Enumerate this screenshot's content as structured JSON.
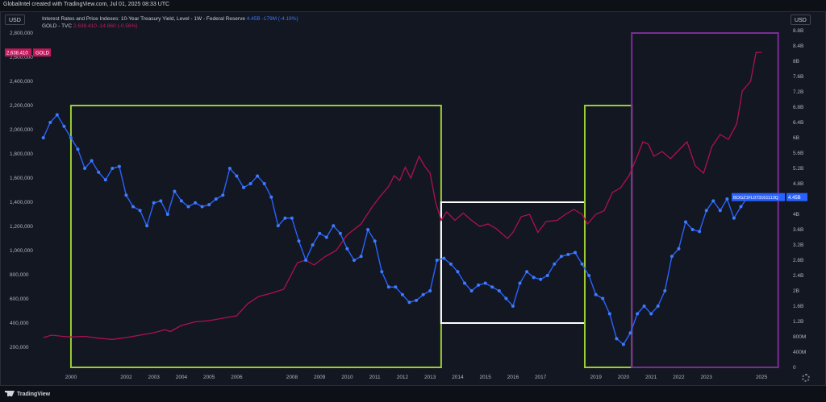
{
  "header": {
    "text": "GlobalIntel created with TradingView.com, Jul 01, 2025 08:33 UTC"
  },
  "units": {
    "left": "USD",
    "right": "USD"
  },
  "legend": {
    "rates_name": "Interest Rates and Price Indexes: 10-Year Treasury Yield, Level - 1W - Federal Reserve",
    "rates_value": "4.45B",
    "rates_change": "-179M (-4.19%)",
    "gold_name": "GOLD - TVC",
    "gold_value": "2,638.410",
    "gold_change": "-14.860 (-0.56%)"
  },
  "price_tags": {
    "gold": "2,638.410",
    "gold_symbol": "GOLD",
    "rates": "BOGZ1FL073161113Q",
    "rates_value": "4.45B"
  },
  "footer": {
    "brand": "TradingView"
  },
  "colors": {
    "background": "#131722",
    "rates_line": "#2962ff",
    "gold_line": "#b0104f",
    "green_box": "#9acd32",
    "white_box": "#ffffff",
    "purple_box": "#7b2d96"
  },
  "chart_data": {
    "type": "line",
    "x_tick_labels": [
      "2000",
      "2002",
      "2003",
      "2004",
      "2005",
      "2006",
      "2008",
      "2009",
      "2010",
      "2011",
      "2012",
      "2013",
      "2014",
      "2015",
      "2016",
      "2017",
      "2019",
      "2020",
      "2021",
      "2022",
      "2023",
      "2025"
    ],
    "left_axis": {
      "ticks": [
        "200,000",
        "400,000",
        "600,000",
        "800,000",
        "1,000,000",
        "1,200,000",
        "1,400,000",
        "1,600,000",
        "1,800,000",
        "2,000,000",
        "2,200,000",
        "2,400,000",
        "2,600,000",
        "2,800,000"
      ],
      "range": [
        0,
        2800000
      ]
    },
    "right_axis": {
      "ticks": [
        "0",
        "400M",
        "800M",
        "1.2B",
        "1.6B",
        "2B",
        "2.4B",
        "2.8B",
        "3.2B",
        "3.6B",
        "4B",
        "4.4B",
        "4.8B",
        "5.2B",
        "5.6B",
        "6B",
        "6.4B",
        "6.8B",
        "7.2B",
        "7.6B",
        "8B",
        "8.4B",
        "8.8B"
      ],
      "range": [
        0,
        8.8
      ]
    },
    "series": [
      {
        "name": "GOLD - TVC",
        "axis": "left",
        "points": [
          [
            1999.0,
            280000
          ],
          [
            1999.3,
            300000
          ],
          [
            1999.7,
            290000
          ],
          [
            2000.0,
            285000
          ],
          [
            2000.5,
            290000
          ],
          [
            2001.0,
            275000
          ],
          [
            2001.5,
            265000
          ],
          [
            2002.0,
            280000
          ],
          [
            2002.5,
            300000
          ],
          [
            2003.0,
            320000
          ],
          [
            2003.4,
            345000
          ],
          [
            2003.6,
            330000
          ],
          [
            2004.0,
            380000
          ],
          [
            2004.5,
            410000
          ],
          [
            2005.0,
            420000
          ],
          [
            2005.5,
            440000
          ],
          [
            2006.0,
            460000
          ],
          [
            2006.4,
            560000
          ],
          [
            2006.8,
            620000
          ],
          [
            2007.3,
            650000
          ],
          [
            2007.7,
            680000
          ],
          [
            2008.2,
            900000
          ],
          [
            2008.5,
            920000
          ],
          [
            2008.8,
            880000
          ],
          [
            2009.2,
            950000
          ],
          [
            2009.6,
            1000000
          ],
          [
            2010.0,
            1130000
          ],
          [
            2010.5,
            1220000
          ],
          [
            2010.9,
            1360000
          ],
          [
            2011.2,
            1450000
          ],
          [
            2011.5,
            1530000
          ],
          [
            2011.7,
            1620000
          ],
          [
            2011.9,
            1580000
          ],
          [
            2012.1,
            1690000
          ],
          [
            2012.3,
            1600000
          ],
          [
            2012.6,
            1780000
          ],
          [
            2012.8,
            1700000
          ],
          [
            2013.0,
            1640000
          ],
          [
            2013.2,
            1400000
          ],
          [
            2013.4,
            1250000
          ],
          [
            2013.6,
            1320000
          ],
          [
            2013.9,
            1250000
          ],
          [
            2014.2,
            1310000
          ],
          [
            2014.5,
            1250000
          ],
          [
            2014.8,
            1200000
          ],
          [
            2015.1,
            1220000
          ],
          [
            2015.4,
            1180000
          ],
          [
            2015.8,
            1100000
          ],
          [
            2016.0,
            1150000
          ],
          [
            2016.3,
            1280000
          ],
          [
            2016.6,
            1300000
          ],
          [
            2016.9,
            1150000
          ],
          [
            2017.2,
            1240000
          ],
          [
            2017.6,
            1250000
          ],
          [
            2017.9,
            1300000
          ],
          [
            2018.2,
            1340000
          ],
          [
            2018.5,
            1300000
          ],
          [
            2018.7,
            1220000
          ],
          [
            2019.0,
            1300000
          ],
          [
            2019.3,
            1330000
          ],
          [
            2019.6,
            1480000
          ],
          [
            2019.9,
            1520000
          ],
          [
            2020.2,
            1620000
          ],
          [
            2020.5,
            1780000
          ],
          [
            2020.7,
            1900000
          ],
          [
            2020.9,
            1880000
          ],
          [
            2021.1,
            1780000
          ],
          [
            2021.4,
            1820000
          ],
          [
            2021.7,
            1760000
          ],
          [
            2022.0,
            1830000
          ],
          [
            2022.3,
            1900000
          ],
          [
            2022.6,
            1700000
          ],
          [
            2022.9,
            1640000
          ],
          [
            2023.2,
            1860000
          ],
          [
            2023.5,
            1960000
          ],
          [
            2023.8,
            1920000
          ],
          [
            2024.1,
            2050000
          ],
          [
            2024.3,
            2320000
          ],
          [
            2024.6,
            2400000
          ],
          [
            2024.8,
            2640000
          ],
          [
            2025.0,
            2638410
          ]
        ]
      },
      {
        "name": "BOGZ1FL073161113Q",
        "axis": "right",
        "points": [
          [
            1999.0,
            6.0
          ],
          [
            1999.25,
            6.4
          ],
          [
            1999.5,
            6.6
          ],
          [
            1999.75,
            6.3
          ],
          [
            2000.0,
            6.0
          ],
          [
            2000.25,
            5.7
          ],
          [
            2000.5,
            5.2
          ],
          [
            2000.75,
            5.4
          ],
          [
            2001.0,
            5.1
          ],
          [
            2001.25,
            4.9
          ],
          [
            2001.5,
            5.2
          ],
          [
            2001.75,
            5.25
          ],
          [
            2002.0,
            4.5
          ],
          [
            2002.25,
            4.2
          ],
          [
            2002.5,
            4.1
          ],
          [
            2002.75,
            3.7
          ],
          [
            2003.0,
            4.3
          ],
          [
            2003.25,
            4.35
          ],
          [
            2003.5,
            4.0
          ],
          [
            2003.75,
            4.6
          ],
          [
            2004.0,
            4.35
          ],
          [
            2004.25,
            4.2
          ],
          [
            2004.5,
            4.3
          ],
          [
            2004.75,
            4.2
          ],
          [
            2005.0,
            4.25
          ],
          [
            2005.25,
            4.4
          ],
          [
            2005.5,
            4.5
          ],
          [
            2005.75,
            5.2
          ],
          [
            2006.0,
            5.0
          ],
          [
            2006.25,
            4.7
          ],
          [
            2006.5,
            4.8
          ],
          [
            2006.75,
            5.0
          ],
          [
            2007.0,
            4.8
          ],
          [
            2007.25,
            4.45
          ],
          [
            2007.5,
            3.7
          ],
          [
            2007.75,
            3.9
          ],
          [
            2008.0,
            3.9
          ],
          [
            2008.25,
            3.3
          ],
          [
            2008.5,
            2.8
          ],
          [
            2008.75,
            3.2
          ],
          [
            2009.0,
            3.5
          ],
          [
            2009.25,
            3.4
          ],
          [
            2009.5,
            3.7
          ],
          [
            2009.75,
            3.5
          ],
          [
            2010.0,
            3.1
          ],
          [
            2010.25,
            2.8
          ],
          [
            2010.5,
            2.9
          ],
          [
            2010.75,
            3.6
          ],
          [
            2011.0,
            3.3
          ],
          [
            2011.25,
            2.5
          ],
          [
            2011.5,
            2.1
          ],
          [
            2011.75,
            2.1
          ],
          [
            2012.0,
            1.9
          ],
          [
            2012.25,
            1.7
          ],
          [
            2012.5,
            1.75
          ],
          [
            2012.75,
            1.9
          ],
          [
            2013.0,
            2.0
          ],
          [
            2013.25,
            2.8
          ],
          [
            2013.5,
            2.85
          ],
          [
            2013.75,
            2.7
          ],
          [
            2014.0,
            2.5
          ],
          [
            2014.25,
            2.2
          ],
          [
            2014.5,
            2.0
          ],
          [
            2014.75,
            2.15
          ],
          [
            2015.0,
            2.2
          ],
          [
            2015.25,
            2.1
          ],
          [
            2015.5,
            2.0
          ],
          [
            2015.75,
            1.8
          ],
          [
            2016.0,
            1.6
          ],
          [
            2016.25,
            2.2
          ],
          [
            2016.5,
            2.5
          ],
          [
            2016.75,
            2.35
          ],
          [
            2017.0,
            2.3
          ],
          [
            2017.25,
            2.4
          ],
          [
            2017.5,
            2.7
          ],
          [
            2017.75,
            2.9
          ],
          [
            2018.0,
            2.95
          ],
          [
            2018.25,
            3.0
          ],
          [
            2018.5,
            2.7
          ],
          [
            2018.75,
            2.4
          ],
          [
            2019.0,
            1.9
          ],
          [
            2019.25,
            1.8
          ],
          [
            2019.5,
            1.4
          ],
          [
            2019.75,
            0.75
          ],
          [
            2020.0,
            0.6
          ],
          [
            2020.25,
            0.9
          ],
          [
            2020.5,
            1.4
          ],
          [
            2020.75,
            1.6
          ],
          [
            2021.0,
            1.4
          ],
          [
            2021.25,
            1.6
          ],
          [
            2021.5,
            2.0
          ],
          [
            2021.75,
            2.9
          ],
          [
            2022.0,
            3.1
          ],
          [
            2022.25,
            3.8
          ],
          [
            2022.5,
            3.6
          ],
          [
            2022.75,
            3.55
          ],
          [
            2023.0,
            4.1
          ],
          [
            2023.25,
            4.35
          ],
          [
            2023.5,
            4.1
          ],
          [
            2023.75,
            4.4
          ],
          [
            2024.0,
            3.9
          ],
          [
            2024.25,
            4.2
          ],
          [
            2024.5,
            4.45
          ]
        ]
      }
    ],
    "annotations": [
      {
        "shape": "rectangle",
        "color": "green",
        "x": [
          2000.0,
          2013.4
        ],
        "y_left": [
          0,
          2200000
        ]
      },
      {
        "shape": "rectangle",
        "color": "white",
        "x": [
          2013.4,
          2018.6
        ],
        "y_left": [
          400000,
          1400000
        ]
      },
      {
        "shape": "rectangle",
        "color": "green",
        "x": [
          2018.6,
          2020.3
        ],
        "y_left": [
          0,
          2200000
        ]
      },
      {
        "shape": "rectangle",
        "color": "purple",
        "x": [
          2020.3,
          2025.6
        ],
        "y_left": [
          0,
          2800000
        ]
      }
    ]
  }
}
